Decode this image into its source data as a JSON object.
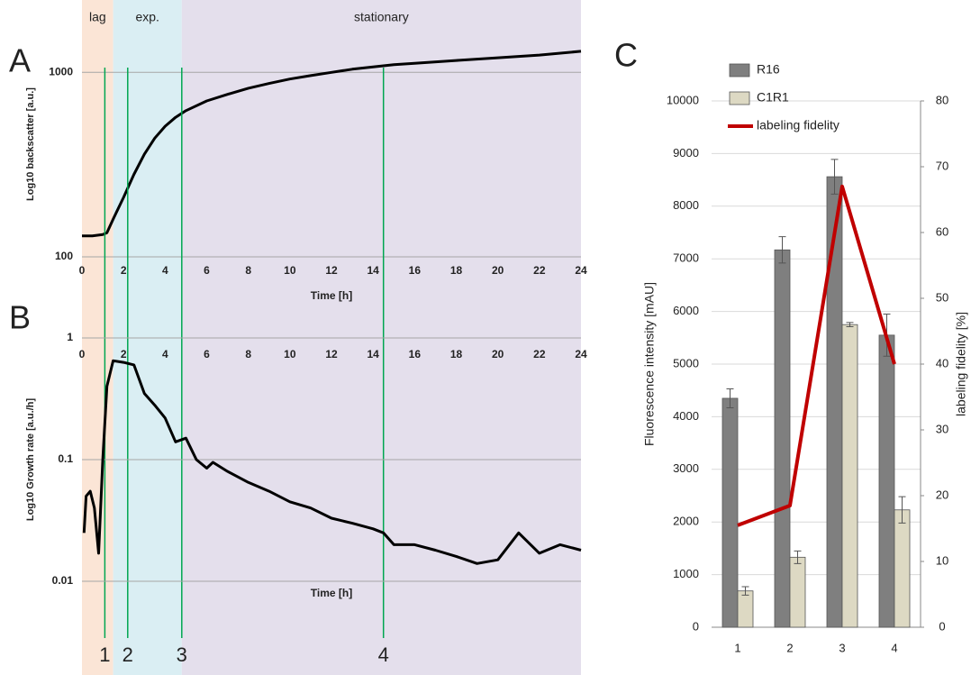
{
  "chart_data": [
    {
      "type": "line",
      "panel": "A",
      "ylabel": "Log10 backscatter [a.u.]",
      "xlabel": "Time [h]",
      "log_y": true,
      "grid": true,
      "color": "#000000",
      "xlim": [
        0,
        24
      ],
      "xticks": [
        0,
        2,
        4,
        6,
        8,
        10,
        12,
        14,
        16,
        18,
        20,
        22,
        24
      ],
      "ylim": [
        100,
        1800
      ],
      "yticks": [
        100,
        1000
      ],
      "phases": [
        {
          "name": "lag",
          "start": 0,
          "end": 1.5,
          "color": "#fbe5d6"
        },
        {
          "name": "exp.",
          "start": 1.5,
          "end": 4.8,
          "color": "#daeef3"
        },
        {
          "name": "stationary",
          "start": 4.8,
          "end": 24,
          "color": "#e4dfec"
        }
      ],
      "markers": [
        {
          "x": 1.1,
          "label": "1"
        },
        {
          "x": 2.2,
          "label": "2"
        },
        {
          "x": 4.8,
          "label": "3"
        },
        {
          "x": 14.5,
          "label": "4"
        }
      ],
      "marker_color": "#00a650",
      "x": [
        0,
        0.5,
        1,
        1.2,
        1.5,
        2,
        2.5,
        3,
        3.5,
        4,
        4.5,
        5,
        6,
        7,
        8,
        9,
        10,
        11,
        12,
        13,
        14,
        15,
        16,
        18,
        20,
        22,
        24
      ],
      "values": [
        130,
        130,
        132,
        135,
        160,
        210,
        280,
        360,
        440,
        510,
        570,
        620,
        700,
        760,
        820,
        870,
        920,
        960,
        1000,
        1040,
        1070,
        1100,
        1120,
        1160,
        1200,
        1240,
        1300
      ]
    },
    {
      "type": "line",
      "panel": "B",
      "ylabel": "Log10 Growth rate [a.u./h]",
      "xlabel": "Time [h]",
      "log_y": true,
      "grid": true,
      "color": "#000000",
      "xaxis_position": "top",
      "xlim": [
        0,
        24
      ],
      "xticks": [
        0,
        2,
        4,
        6,
        8,
        10,
        12,
        14,
        16,
        18,
        20,
        22,
        24
      ],
      "ylim": [
        0.01,
        1
      ],
      "yticks": [
        0.01,
        0.1,
        1
      ],
      "x": [
        0.1,
        0.2,
        0.4,
        0.6,
        0.8,
        1.0,
        1.2,
        1.5,
        2,
        2.5,
        3,
        3.5,
        4,
        4.5,
        5,
        5.5,
        6,
        6.3,
        7,
        8,
        9,
        10,
        11,
        12,
        13,
        14,
        14.5,
        15,
        16,
        17,
        18,
        19,
        20,
        21,
        22,
        23,
        24
      ],
      "values": [
        0.025,
        0.05,
        0.055,
        0.04,
        0.017,
        0.1,
        0.4,
        0.65,
        0.63,
        0.6,
        0.35,
        0.28,
        0.22,
        0.14,
        0.15,
        0.1,
        0.085,
        0.095,
        0.08,
        0.065,
        0.055,
        0.045,
        0.04,
        0.033,
        0.03,
        0.027,
        0.025,
        0.02,
        0.02,
        0.018,
        0.016,
        0.014,
        0.015,
        0.025,
        0.017,
        0.02,
        0.018
      ]
    },
    {
      "type": "bar",
      "panel": "C",
      "ylabel": "Fluorescence intensity [mAU]",
      "y2label": "labeling fidelity [%]",
      "grid": true,
      "categories": [
        "1",
        "2",
        "3",
        "4"
      ],
      "ylim": [
        0,
        10000
      ],
      "yticks": [
        0,
        1000,
        2000,
        3000,
        4000,
        5000,
        6000,
        7000,
        8000,
        9000,
        10000
      ],
      "y2lim": [
        0,
        80
      ],
      "y2ticks": [
        0,
        10,
        20,
        30,
        40,
        50,
        60,
        70,
        80
      ],
      "series": [
        {
          "name": "R16",
          "color": "#7f7f7f",
          "values": [
            4350,
            7170,
            8560,
            5550
          ],
          "errors": [
            180,
            250,
            330,
            400
          ]
        },
        {
          "name": "C1R1",
          "color": "#ddd9c3",
          "values": [
            690,
            1330,
            5750,
            2230
          ],
          "errors": [
            80,
            120,
            40,
            250
          ]
        },
        {
          "name": "labeling fidelity",
          "type": "line",
          "axis": "y2",
          "color": "#c00000",
          "values": [
            15.5,
            18.5,
            67,
            40
          ]
        }
      ]
    }
  ]
}
